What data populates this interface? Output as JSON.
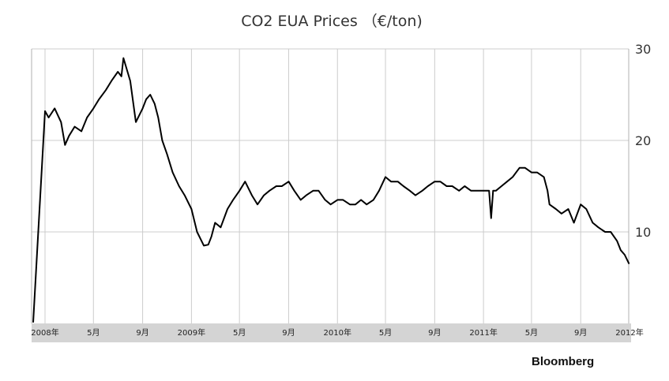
{
  "chart_data": {
    "type": "line",
    "title": "CO2 EUA Prices （€/ton)",
    "xlabel": "",
    "ylabel": "",
    "source": "Bloomberg",
    "x_ticks": [
      "2008年",
      "5月",
      "9月",
      "2009年",
      "5月",
      "9月",
      "2010年",
      "5月",
      "9月",
      "2011年",
      "5月",
      "9月",
      "2012年"
    ],
    "y_ticks": [
      10,
      20,
      30
    ],
    "ylim": [
      0,
      30
    ],
    "xlim": [
      "2008-01",
      "2012-01"
    ],
    "grid": true,
    "line_color": "#000000",
    "series": [
      {
        "x": [
          "2007-12-25",
          "2008-01-01",
          "2008-01-10",
          "2008-01-25",
          "2008-02-10",
          "2008-02-20",
          "2008-03-01",
          "2008-03-15",
          "2008-04-01",
          "2008-04-15",
          "2008-05-01",
          "2008-05-15",
          "2008-06-01",
          "2008-06-15",
          "2008-07-01",
          "2008-07-10",
          "2008-07-15",
          "2008-08-01",
          "2008-08-15",
          "2008-09-01",
          "2008-09-10",
          "2008-09-20",
          "2008-10-01",
          "2008-10-10",
          "2008-10-20",
          "2008-11-01",
          "2008-11-15",
          "2008-12-01",
          "2008-12-15",
          "2009-01-01",
          "2009-01-15",
          "2009-02-01",
          "2009-02-12",
          "2009-02-20",
          "2009-03-01",
          "2009-03-15",
          "2009-04-01",
          "2009-04-15",
          "2009-05-01",
          "2009-05-15",
          "2009-06-01",
          "2009-06-15",
          "2009-07-01",
          "2009-07-15",
          "2009-08-01",
          "2009-08-15",
          "2009-09-01",
          "2009-09-15",
          "2009-10-01",
          "2009-10-15",
          "2009-11-01",
          "2009-11-15",
          "2009-12-01",
          "2009-12-15",
          "2010-01-01",
          "2010-01-15",
          "2010-02-01",
          "2010-02-15",
          "2010-03-01",
          "2010-03-15",
          "2010-04-01",
          "2010-04-15",
          "2010-05-01",
          "2010-05-15",
          "2010-06-01",
          "2010-06-15",
          "2010-07-01",
          "2010-07-15",
          "2010-08-01",
          "2010-08-15",
          "2010-09-01",
          "2010-09-15",
          "2010-10-01",
          "2010-10-15",
          "2010-11-01",
          "2010-11-15",
          "2010-12-01",
          "2010-12-15",
          "2011-01-01",
          "2011-01-15",
          "2011-01-20",
          "2011-01-25",
          "2011-02-01",
          "2011-02-15",
          "2011-03-01",
          "2011-03-15",
          "2011-04-01",
          "2011-04-15",
          "2011-05-01",
          "2011-05-15",
          "2011-06-01",
          "2011-06-10",
          "2011-06-15",
          "2011-07-01",
          "2011-07-15",
          "2011-08-01",
          "2011-08-15",
          "2011-09-01",
          "2011-09-15",
          "2011-10-01",
          "2011-10-15",
          "2011-11-01",
          "2011-11-15",
          "2011-12-01",
          "2011-12-10",
          "2011-12-20",
          "2011-12-31"
        ],
        "values": [
          0.1,
          23.2,
          22.5,
          23.5,
          22.0,
          19.5,
          20.5,
          21.5,
          21.0,
          22.5,
          23.5,
          24.5,
          25.5,
          26.5,
          27.5,
          27.0,
          29.0,
          26.5,
          22.0,
          23.5,
          24.5,
          25.0,
          24.0,
          22.5,
          20.0,
          18.5,
          16.5,
          15.0,
          14.0,
          12.5,
          10.0,
          8.5,
          8.6,
          9.5,
          11.0,
          10.5,
          12.5,
          13.5,
          14.5,
          15.5,
          14.0,
          13.0,
          14.0,
          14.5,
          15.0,
          15.0,
          15.5,
          14.5,
          13.5,
          14.0,
          14.5,
          14.5,
          13.5,
          13.0,
          13.5,
          13.5,
          13.0,
          13.0,
          13.5,
          13.0,
          13.5,
          14.5,
          16.0,
          15.5,
          15.5,
          15.0,
          14.5,
          14.0,
          14.5,
          15.0,
          15.5,
          15.5,
          15.0,
          15.0,
          14.5,
          15.0,
          14.5,
          14.5,
          14.5,
          14.5,
          11.5,
          14.5,
          14.5,
          15.0,
          15.5,
          16.0,
          17.0,
          17.0,
          16.5,
          16.5,
          16.0,
          14.5,
          13.0,
          12.5,
          12.0,
          12.5,
          11.0,
          13.0,
          12.5,
          11.0,
          10.5,
          10.0,
          10.0,
          9.0,
          8.0,
          7.5,
          6.5
        ]
      }
    ]
  }
}
